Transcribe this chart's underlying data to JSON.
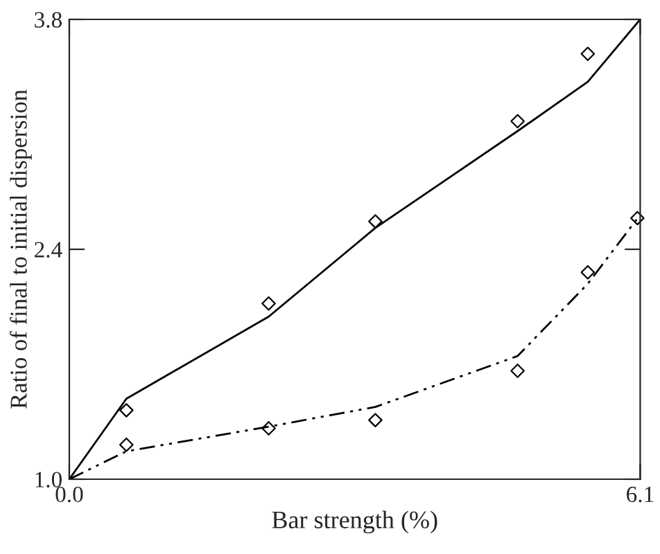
{
  "chart_data": {
    "type": "line",
    "xlabel": "Bar strength (%)",
    "ylabel": "Ratio of final to initial dispersion",
    "xlim": [
      0.0,
      6.1
    ],
    "xticks": [
      {
        "value": 0.0,
        "label": "0.0"
      },
      {
        "value": 6.1,
        "label": "6.1"
      }
    ],
    "ylim": [
      1.0,
      3.8
    ],
    "yticks": [
      {
        "value": 1.0,
        "label": "1.0"
      },
      {
        "value": 2.4,
        "label": "2.4"
      },
      {
        "value": 3.8,
        "label": "3.8"
      }
    ],
    "grid": false,
    "legend": false,
    "series": [
      {
        "color": "#000000",
        "line_style": "solid",
        "marker": "none",
        "x": [
          0.0,
          0.61,
          2.13,
          3.27,
          4.79,
          5.54,
          6.1
        ],
        "values": [
          1.0,
          1.49,
          1.99,
          2.53,
          3.12,
          3.42,
          3.8
        ]
      },
      {
        "color": "#000000",
        "line_style": "dashed",
        "marker": "none",
        "x": [
          0.0,
          0.61,
          2.13,
          3.27,
          4.79,
          5.54,
          6.1
        ],
        "values": [
          1.0,
          1.17,
          1.32,
          1.44,
          1.75,
          2.19,
          2.61
        ]
      },
      {
        "type": "scatter",
        "color": "#000000",
        "marker": "diamond",
        "x": [
          0.61,
          2.13,
          3.27,
          4.79,
          5.54
        ],
        "values": [
          1.42,
          2.07,
          2.57,
          3.18,
          3.59
        ]
      },
      {
        "type": "scatter",
        "color": "#000000",
        "marker": "diamond",
        "x": [
          0.61,
          2.13,
          3.27,
          4.79,
          5.54,
          6.07
        ],
        "values": [
          1.21,
          1.31,
          1.36,
          1.66,
          2.26,
          2.59
        ]
      }
    ]
  }
}
